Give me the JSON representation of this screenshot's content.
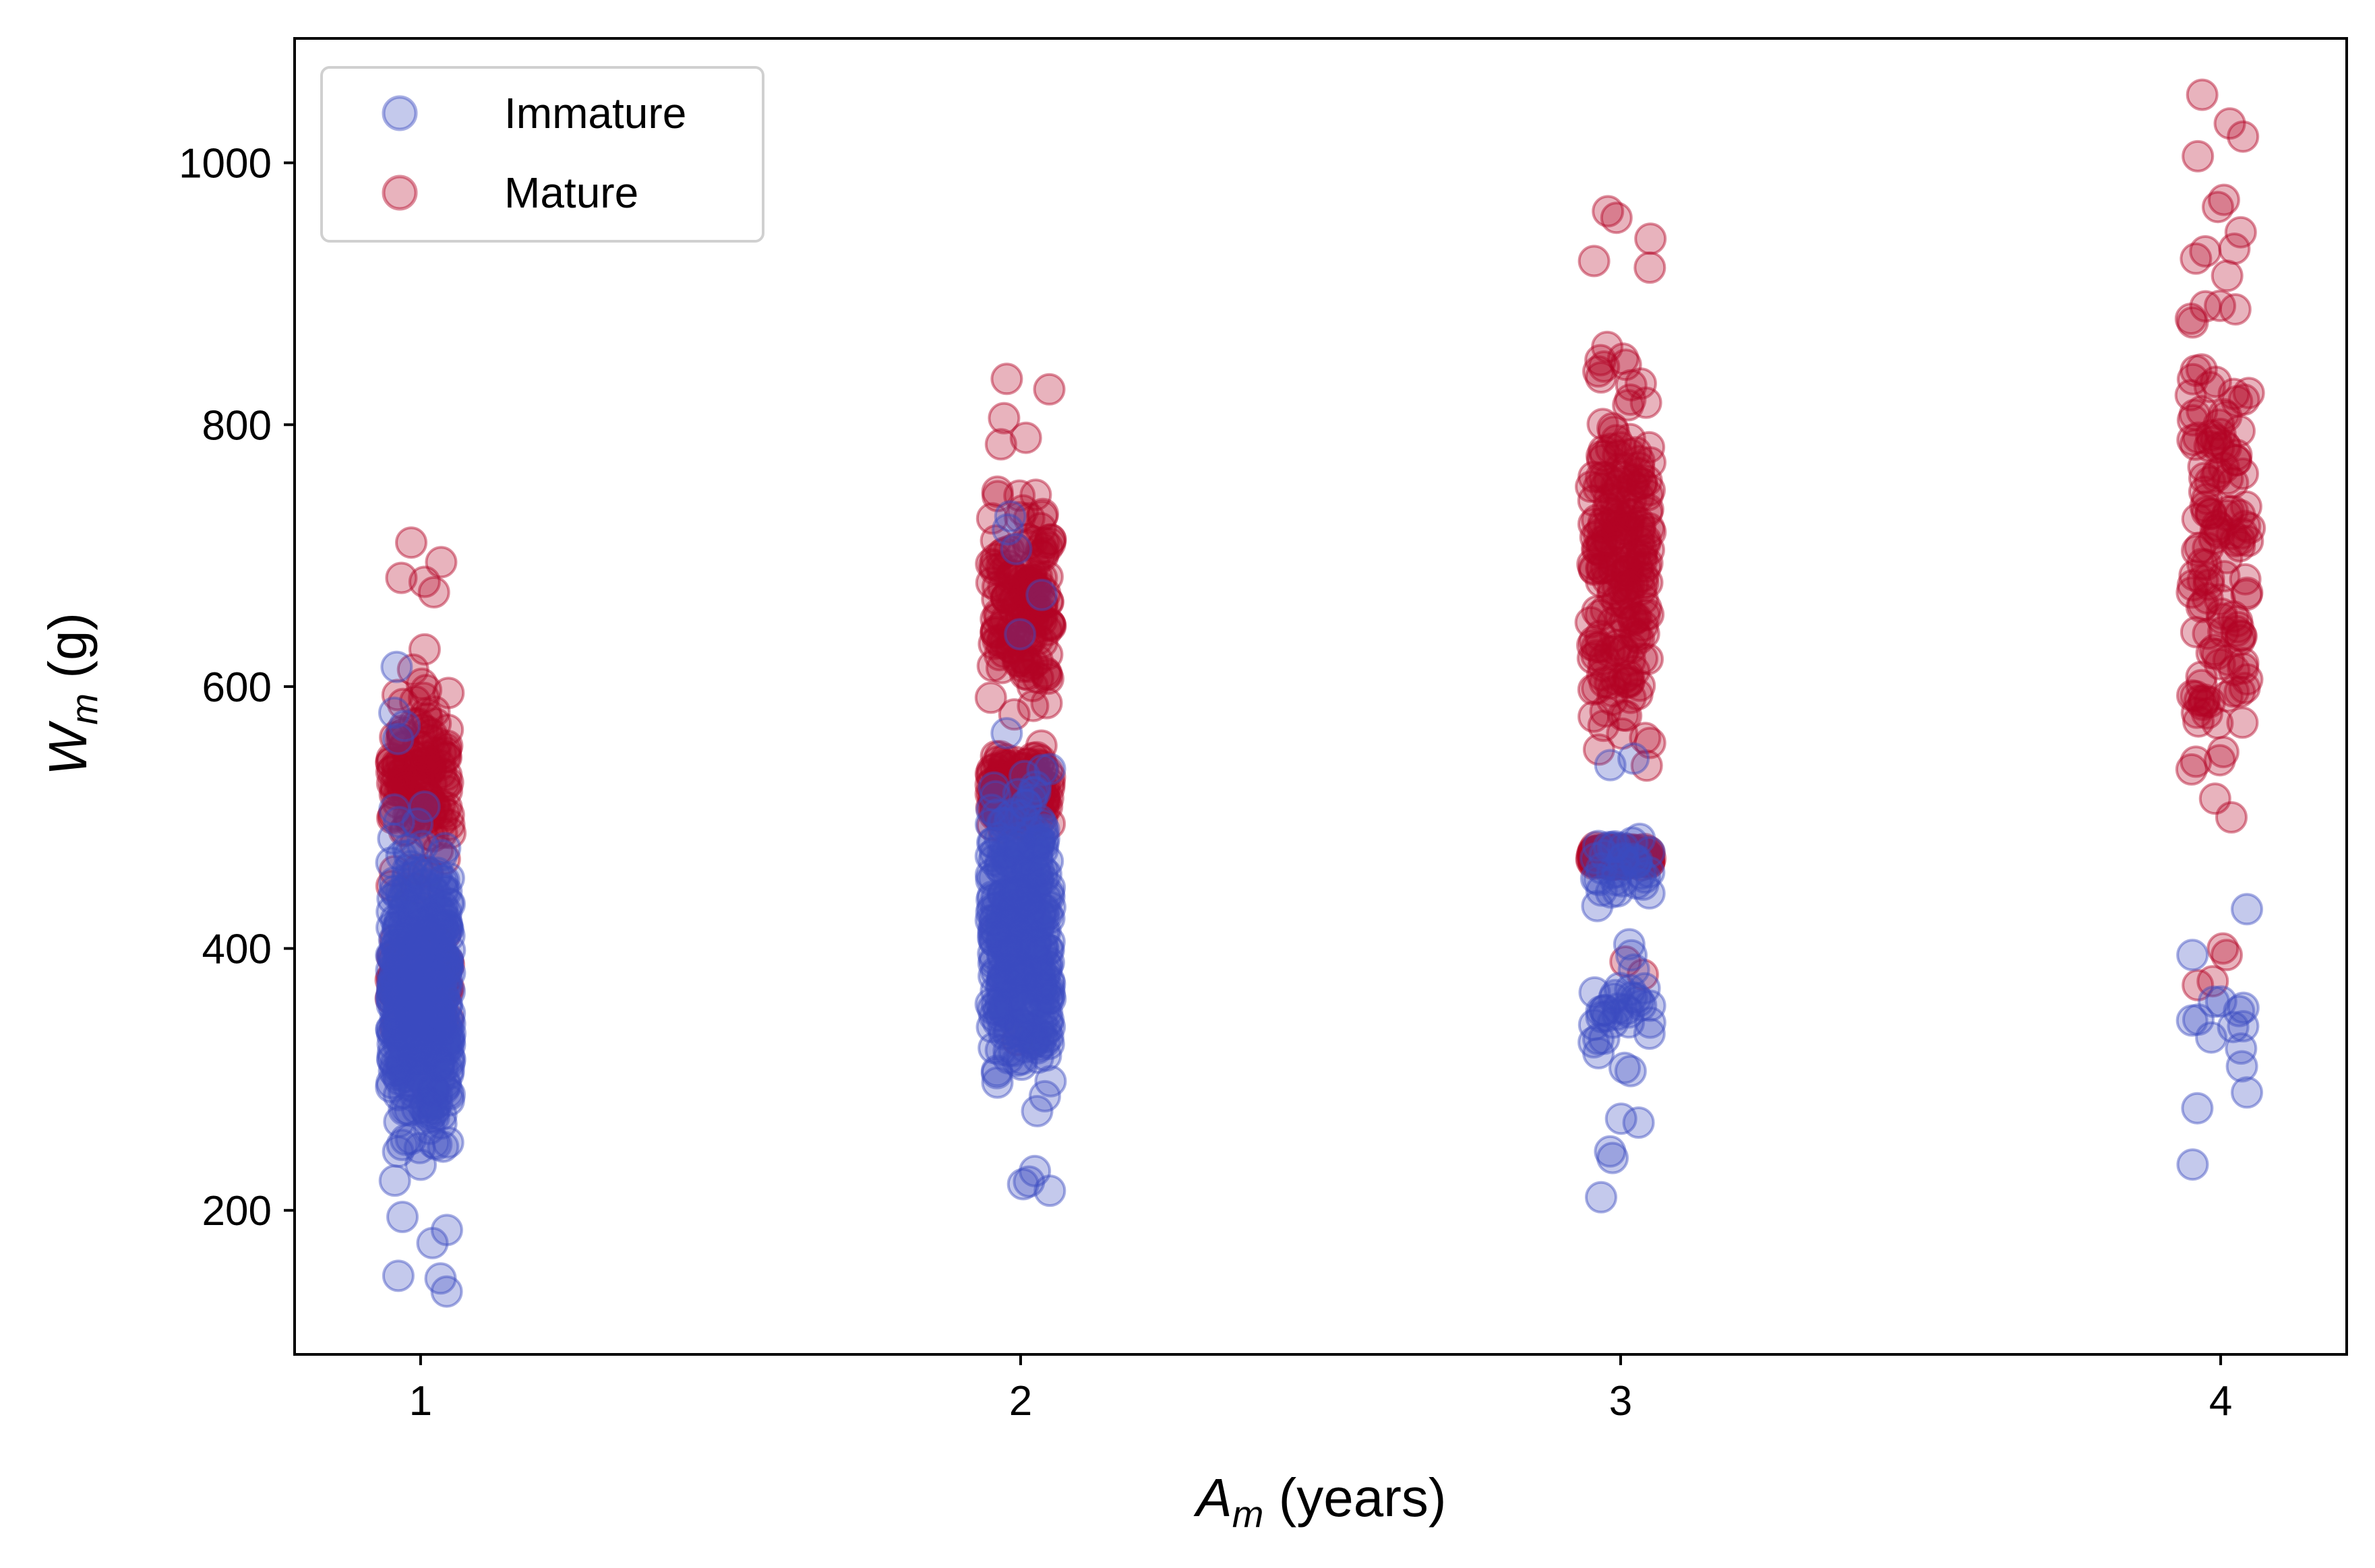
{
  "chart_data": {
    "type": "scatter",
    "xlabel": {
      "symbol": "A",
      "subscript": "m",
      "unit": " (years)"
    },
    "ylabel": {
      "symbol": "W",
      "subscript": "m",
      "unit": " (g)"
    },
    "xlim": [
      0.79,
      4.21
    ],
    "ylim": [
      90,
      1095
    ],
    "x_ticks": [
      1,
      2,
      3,
      4
    ],
    "y_ticks": [
      200,
      400,
      600,
      800,
      1000
    ],
    "grid": false,
    "legend": {
      "placement": "top-left"
    },
    "x_jitter": 0.05,
    "series": [
      {
        "name": "Mature",
        "color": "#b40426",
        "opacity": 0.3,
        "groups": [
          {
            "x": 1,
            "count": 260,
            "ranges": [
              [
                420,
                640
              ],
              [
                330,
                420
              ]
            ],
            "extremes": [
              710,
              695,
              683,
              680,
              672
            ]
          },
          {
            "x": 2,
            "count": 300,
            "ranges": [
              [
                560,
                770
              ],
              [
                480,
                560
              ]
            ],
            "extremes": [
              835,
              827,
              805,
              790,
              785,
              330
            ]
          },
          {
            "x": 3,
            "count": 420,
            "ranges": [
              [
                480,
                900
              ],
              [
                460,
                480
              ]
            ],
            "extremes": [
              963,
              958,
              942,
              925,
              920,
              390,
              380
            ]
          },
          {
            "x": 4,
            "count": 150,
            "ranges": [
              [
                440,
                1000
              ]
            ],
            "extremes": [
              1052,
              1030,
              1020,
              1005,
              400,
              395,
              375,
              372
            ]
          }
        ]
      },
      {
        "name": "Immature",
        "color": "#3b4cc0",
        "opacity": 0.3,
        "groups": [
          {
            "x": 1,
            "count": 520,
            "ranges": [
              [
                220,
                500
              ],
              [
                200,
                540
              ]
            ],
            "extremes": [
              615,
              580,
              570,
              560,
              195,
              185,
              175,
              150,
              148,
              138
            ]
          },
          {
            "x": 2,
            "count": 360,
            "ranges": [
              [
                260,
                560
              ],
              [
                240,
                600
              ]
            ],
            "extremes": [
              730,
              720,
              705,
              670,
              640,
              230,
              222,
              220,
              215
            ]
          },
          {
            "x": 3,
            "count": 75,
            "ranges": [
              [
                280,
                420
              ],
              [
                420,
                500
              ]
            ],
            "extremes": [
              545,
              540,
              270,
              267,
              245,
              240,
              210
            ]
          },
          {
            "x": 4,
            "count": 16,
            "ranges": [
              [
                300,
                400
              ]
            ],
            "extremes": [
              430,
              395,
              345,
              340,
              310,
              290,
              278,
              235
            ]
          }
        ]
      }
    ]
  }
}
